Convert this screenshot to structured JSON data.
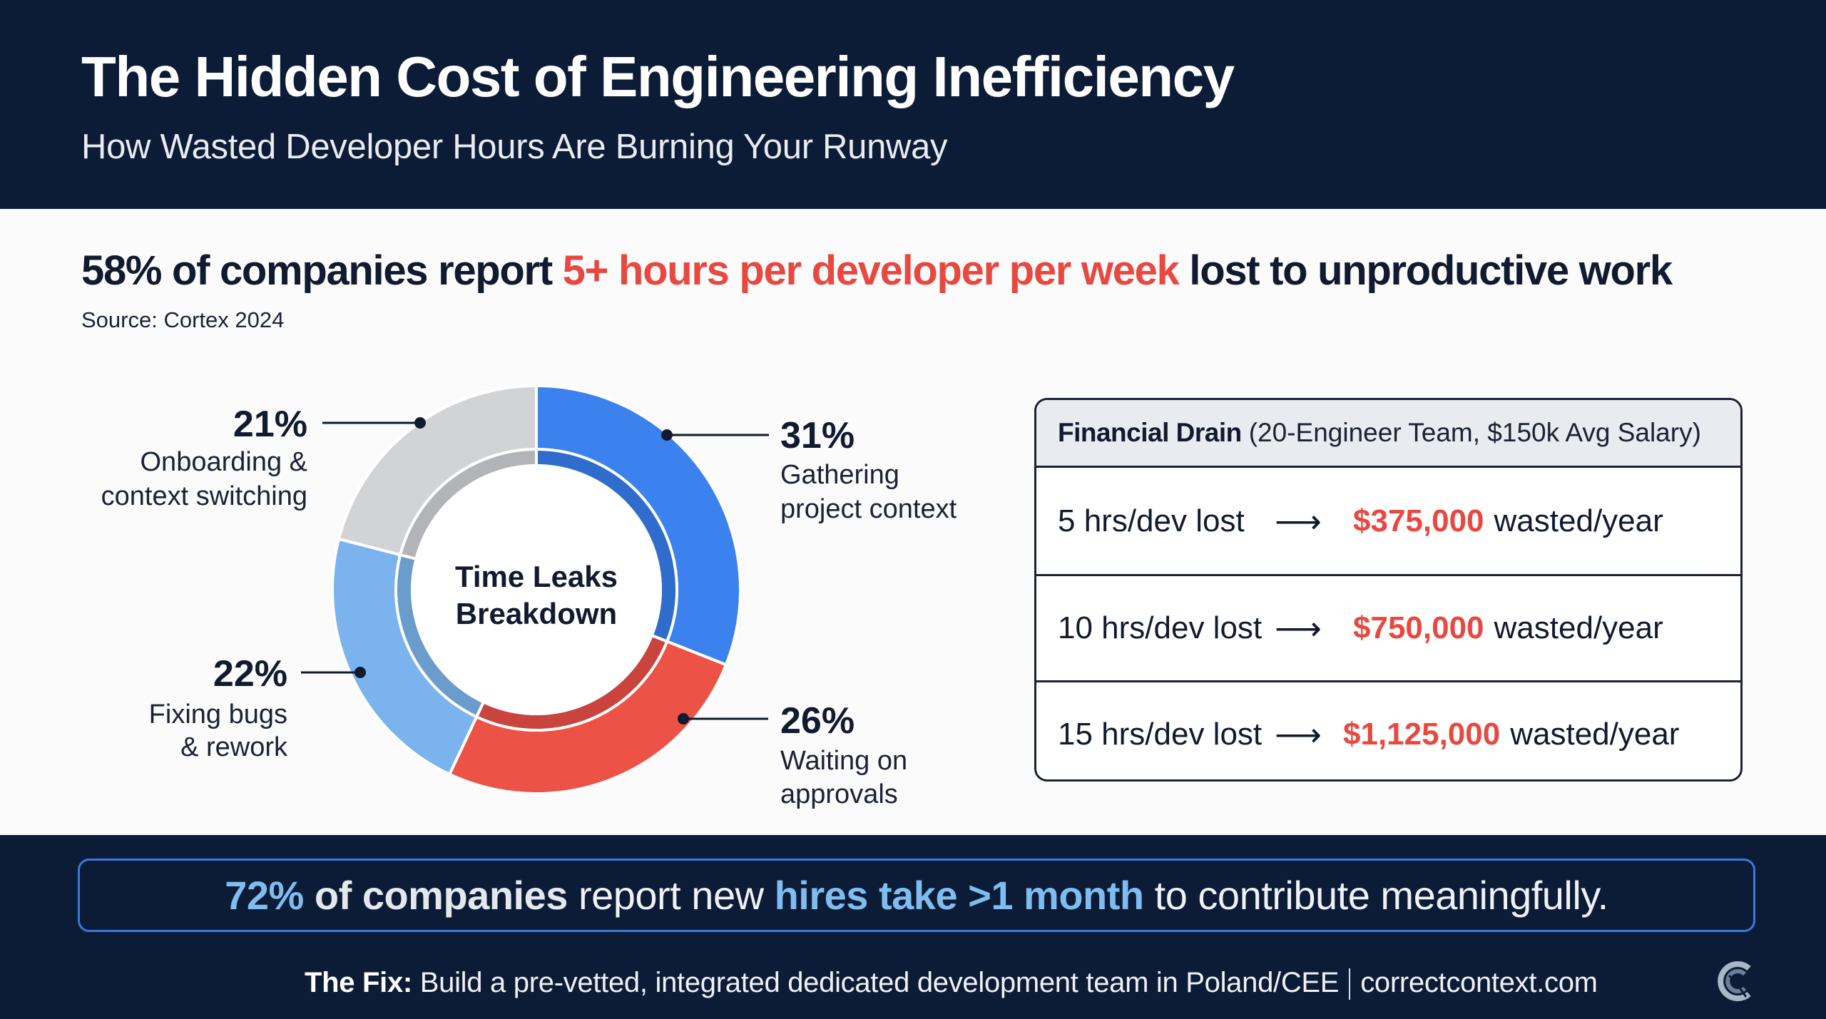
{
  "header": {
    "title": "The Hidden Cost of Engineering Inefficiency",
    "subtitle": "How Wasted Developer Hours Are Burning Your Runway"
  },
  "headline": {
    "part1": "58% of companies report ",
    "highlight": "5+ hours per developer per week",
    "part2": " lost to unproductive work",
    "source": "Source: Cortex 2024"
  },
  "colors": {
    "navy": "#0c1c36",
    "red": "#e8483f",
    "blue": "#3b82ee",
    "light_blue": "#7ab3ee",
    "gray": "#d2d3d5",
    "callout_blue": "#7fbcef"
  },
  "chart_data": {
    "type": "pie",
    "title": "Time Leaks Breakdown",
    "title_lines": [
      "Time Leaks",
      "Breakdown"
    ],
    "donut": true,
    "unit": "%",
    "start": "12 o'clock, clockwise",
    "slices": [
      {
        "label": "Gathering project context",
        "lines": [
          "Gathering",
          "project context"
        ],
        "value": 31,
        "display": "31%",
        "color": "#3b82ee",
        "inner_color": "#2f6ccc"
      },
      {
        "label": "Waiting on approvals",
        "lines": [
          "Waiting on",
          "approvals"
        ],
        "value": 26,
        "display": "26%",
        "color": "#ec5245",
        "inner_color": "#c9443c"
      },
      {
        "label": "Fixing bugs & rework",
        "lines": [
          "Fixing bugs",
          "& rework"
        ],
        "value": 22,
        "display": "22%",
        "color": "#7ab3ee",
        "inner_color": "#6a9ccc"
      },
      {
        "label": "Onboarding & context switching",
        "lines": [
          "Onboarding &",
          "context switching"
        ],
        "value": 21,
        "display": "21%",
        "color": "#d2d3d5",
        "inner_color": "#b3b4b7"
      }
    ]
  },
  "financial_table": {
    "title_bold": "Financial Drain",
    "title_rest": "(20-Engineer Team, $150k Avg Salary)",
    "arrow_icon": "long-right-arrow",
    "arrow_glyph": "⟶",
    "rows": [
      {
        "hours": "5 hrs/dev lost",
        "amount": "$375,000",
        "suffix": "wasted/year"
      },
      {
        "hours": "10 hrs/dev lost",
        "amount": "$750,000",
        "suffix": "wasted/year"
      },
      {
        "hours": "15 hrs/dev lost",
        "amount": "$1,125,000",
        "suffix": "wasted/year"
      }
    ]
  },
  "callout": {
    "stat": "72%",
    "bold": " of companies",
    "mid": " report new ",
    "highlight": "hires take >1 month",
    "end": " to contribute meaningfully."
  },
  "footer": {
    "fix_label": "The Fix:",
    "fix_text": " Build a pre-vetted, integrated dedicated development team in Poland/CEE",
    "website": "correctcontext.com",
    "logo_icon": "correctcontext-logo"
  }
}
